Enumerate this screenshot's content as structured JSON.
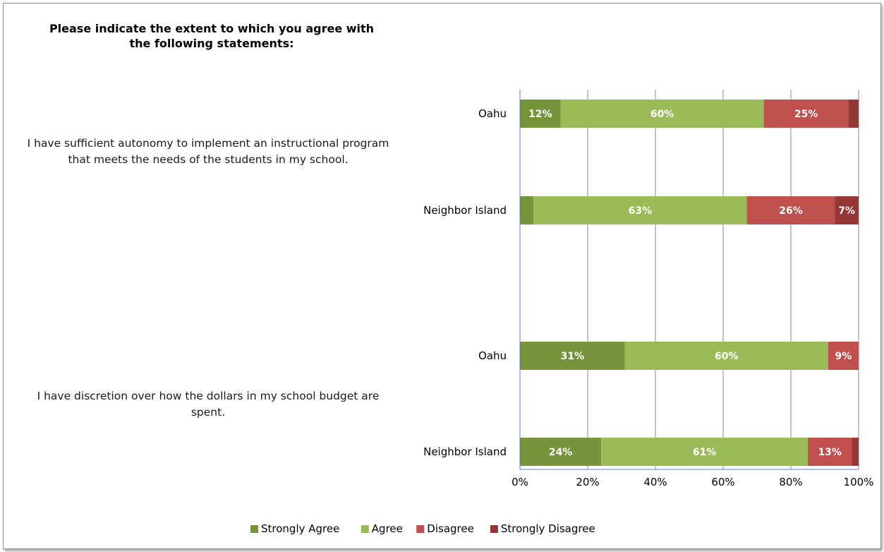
{
  "title": "Please indicate the extent to which you agree with the following statements:",
  "colors": {
    "strongly_agree": "#77933c",
    "agree": "#9bbb59",
    "disagree": "#c0504d",
    "strongly_disagree": "#953735"
  },
  "chart_data": {
    "type": "bar",
    "orientation": "horizontal-stacked-100",
    "xlim": [
      0,
      100
    ],
    "ticks": [
      "0%",
      "20%",
      "40%",
      "60%",
      "80%",
      "100%"
    ],
    "grid": true,
    "legend_position": "bottom",
    "series": [
      {
        "name": "Strongly Agree",
        "color": "#77933c"
      },
      {
        "name": "Agree",
        "color": "#9bbb59"
      },
      {
        "name": "Disagree",
        "color": "#c0504d"
      },
      {
        "name": "Strongly Disagree",
        "color": "#953735"
      }
    ],
    "groups": [
      {
        "statement": "I have sufficient autonomy to implement an instructional program that meets the needs of the students in my school.",
        "rows": [
          {
            "category": "Oahu",
            "values": [
              12,
              60,
              25,
              3
            ],
            "labels": [
              "12%",
              "60%",
              "25%",
              ""
            ]
          },
          {
            "category": "Neighbor Island",
            "values": [
              4,
              63,
              26,
              7
            ],
            "labels": [
              "",
              "63%",
              "26%",
              "7%"
            ]
          }
        ]
      },
      {
        "statement": "I have discretion over how the dollars in my school budget are spent.",
        "rows": [
          {
            "category": "Oahu",
            "values": [
              31,
              60,
              9,
              0
            ],
            "labels": [
              "31%",
              "60%",
              "9%",
              ""
            ]
          },
          {
            "category": "Neighbor Island",
            "values": [
              24,
              61,
              13,
              2
            ],
            "labels": [
              "24%",
              "61%",
              "13%",
              ""
            ]
          }
        ]
      }
    ]
  }
}
